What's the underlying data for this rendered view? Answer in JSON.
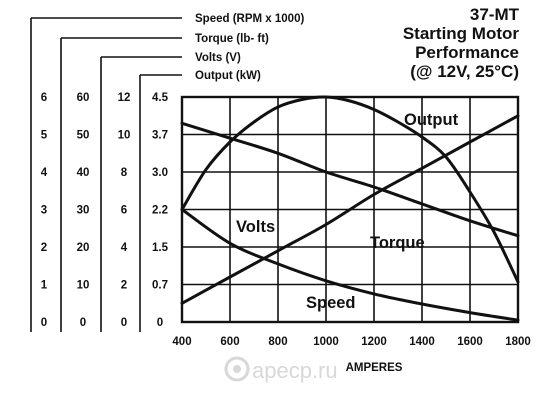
{
  "title": {
    "line1": "37-MT",
    "line2": "Starting Motor",
    "line3": "Performance",
    "line4": "(@ 12V, 25°C)"
  },
  "watermark": "apecp.ru",
  "colors": {
    "ink": "#111111",
    "background": "#ffffff",
    "watermark": "#d8d8d8"
  },
  "chart_data": {
    "type": "line",
    "title": "37-MT Starting Motor Performance (@ 12V, 25°C)",
    "xlabel": "AMPERES",
    "xlim": [
      400,
      1800
    ],
    "x_ticks": [
      "400",
      "600",
      "800",
      "1000",
      "1200",
      "1400",
      "1600",
      "1800"
    ],
    "grid": true,
    "axes": [
      {
        "key": "speed",
        "label": "Speed (RPM x 1000)",
        "ticks": [
          "0",
          "1",
          "2",
          "3",
          "4",
          "5",
          "6"
        ],
        "ylim": [
          0,
          6
        ]
      },
      {
        "key": "torque",
        "label": "Torque (lb- ft)",
        "ticks": [
          "0",
          "10",
          "20",
          "30",
          "40",
          "50",
          "60"
        ],
        "ylim": [
          0,
          60
        ]
      },
      {
        "key": "volts",
        "label": "Volts (V)",
        "ticks": [
          "0",
          "2",
          "4",
          "6",
          "8",
          "10",
          "12"
        ],
        "ylim": [
          0,
          12
        ]
      },
      {
        "key": "output",
        "label": "Output (kW)",
        "ticks": [
          "0",
          "0.7",
          "1.5",
          "2.2",
          "3.0",
          "3.7",
          "4.5"
        ],
        "ylim": [
          0,
          4.5
        ]
      }
    ],
    "series": [
      {
        "name": "Output",
        "axis": "output",
        "x": [
          400,
          500,
          600,
          700,
          800,
          900,
          1000,
          1100,
          1200,
          1300,
          1400,
          1500,
          1600,
          1700,
          1800
        ],
        "values": [
          2.25,
          3.05,
          3.6,
          4.0,
          4.3,
          4.45,
          4.5,
          4.42,
          4.25,
          4.0,
          3.7,
          3.3,
          2.6,
          1.8,
          0.8
        ]
      },
      {
        "name": "Volts",
        "axis": "volts",
        "x": [
          400,
          600,
          800,
          1000,
          1200,
          1400,
          1600,
          1800
        ],
        "values": [
          10.6,
          9.8,
          9.0,
          8.0,
          7.2,
          6.3,
          5.4,
          4.6
        ]
      },
      {
        "name": "Torque",
        "axis": "torque",
        "x": [
          400,
          600,
          800,
          1000,
          1200,
          1400,
          1600,
          1800
        ],
        "values": [
          5,
          12,
          19,
          26,
          34,
          41,
          48,
          55
        ]
      },
      {
        "name": "Speed",
        "axis": "speed",
        "x": [
          400,
          600,
          800,
          1000,
          1200,
          1400,
          1600,
          1800
        ],
        "values": [
          3.0,
          2.1,
          1.55,
          1.1,
          0.75,
          0.48,
          0.25,
          0.05
        ]
      }
    ]
  }
}
